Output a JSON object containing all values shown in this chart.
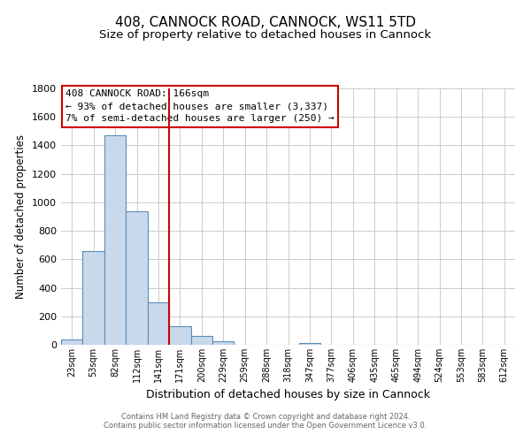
{
  "title1": "408, CANNOCK ROAD, CANNOCK, WS11 5TD",
  "title2": "Size of property relative to detached houses in Cannock",
  "xlabel": "Distribution of detached houses by size in Cannock",
  "ylabel": "Number of detached properties",
  "bar_color": "#c9d9ec",
  "bar_edge_color": "#5b8db8",
  "bin_labels": [
    "23sqm",
    "53sqm",
    "82sqm",
    "112sqm",
    "141sqm",
    "171sqm",
    "200sqm",
    "229sqm",
    "259sqm",
    "288sqm",
    "318sqm",
    "347sqm",
    "377sqm",
    "406sqm",
    "435sqm",
    "465sqm",
    "494sqm",
    "524sqm",
    "553sqm",
    "583sqm",
    "612sqm"
  ],
  "bin_values": [
    40,
    655,
    1468,
    935,
    295,
    130,
    65,
    25,
    0,
    0,
    0,
    14,
    0,
    0,
    0,
    0,
    0,
    0,
    0,
    0,
    0
  ],
  "ylim": [
    0,
    1800
  ],
  "yticks": [
    0,
    200,
    400,
    600,
    800,
    1000,
    1200,
    1400,
    1600,
    1800
  ],
  "vline_x_idx": 5,
  "vline_color": "#cc0000",
  "annotation_title": "408 CANNOCK ROAD: 166sqm",
  "annotation_line1": "← 93% of detached houses are smaller (3,337)",
  "annotation_line2": "7% of semi-detached houses are larger (250) →",
  "annotation_box_color": "#ffffff",
  "annotation_box_edge": "#cc0000",
  "footer1": "Contains HM Land Registry data © Crown copyright and database right 2024.",
  "footer2": "Contains public sector information licensed under the Open Government Licence v3.0.",
  "background_color": "#ffffff",
  "grid_color": "#cccccc",
  "title1_fontsize": 11,
  "title2_fontsize": 9.5,
  "ylabel_fontsize": 8.5,
  "xlabel_fontsize": 9,
  "ytick_fontsize": 8,
  "xtick_fontsize": 7,
  "annotation_fontsize": 8,
  "footer_fontsize": 6
}
